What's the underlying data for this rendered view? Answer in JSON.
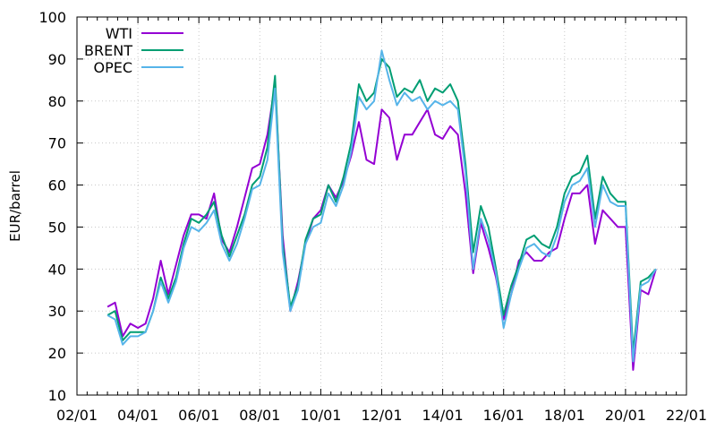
{
  "chart_data": {
    "type": "line",
    "title": "",
    "xlabel": "",
    "ylabel": "EUR/barrel",
    "xlim": [
      "2002-01",
      "2022-01"
    ],
    "ylim": [
      10,
      100
    ],
    "x_ticks": [
      "02/01",
      "04/01",
      "06/01",
      "08/01",
      "10/01",
      "12/01",
      "14/01",
      "16/01",
      "18/01",
      "20/01",
      "22/01"
    ],
    "y_ticks": [
      10,
      20,
      30,
      40,
      50,
      60,
      70,
      80,
      90,
      100
    ],
    "grid": true,
    "legend_position": "top-left",
    "x": [
      "2003-01",
      "2003-04",
      "2003-07",
      "2003-10",
      "2004-01",
      "2004-04",
      "2004-07",
      "2004-10",
      "2005-01",
      "2005-04",
      "2005-07",
      "2005-10",
      "2006-01",
      "2006-04",
      "2006-07",
      "2006-10",
      "2007-01",
      "2007-04",
      "2007-07",
      "2007-10",
      "2008-01",
      "2008-04",
      "2008-07",
      "2008-10",
      "2009-01",
      "2009-04",
      "2009-07",
      "2009-10",
      "2010-01",
      "2010-04",
      "2010-07",
      "2010-10",
      "2011-01",
      "2011-04",
      "2011-07",
      "2011-10",
      "2012-01",
      "2012-04",
      "2012-07",
      "2012-10",
      "2013-01",
      "2013-04",
      "2013-07",
      "2013-10",
      "2014-01",
      "2014-04",
      "2014-07",
      "2014-10",
      "2015-01",
      "2015-04",
      "2015-07",
      "2015-10",
      "2016-01",
      "2016-04",
      "2016-07",
      "2016-10",
      "2017-01",
      "2017-04",
      "2017-07",
      "2017-10",
      "2018-01",
      "2018-04",
      "2018-07",
      "2018-10",
      "2019-01",
      "2019-04",
      "2019-07",
      "2019-10",
      "2020-01",
      "2020-04",
      "2020-07",
      "2020-10",
      "2021-01"
    ],
    "series": [
      {
        "name": "WTI",
        "color": "#9400d3",
        "values": [
          31,
          32,
          24,
          27,
          26,
          27,
          33,
          42,
          34,
          41,
          48,
          53,
          53,
          52,
          58,
          47,
          44,
          50,
          57,
          64,
          65,
          72,
          84,
          48,
          30,
          37,
          46,
          52,
          54,
          60,
          57,
          61,
          67,
          75,
          66,
          65,
          78,
          76,
          66,
          72,
          72,
          75,
          78,
          72,
          71,
          74,
          72,
          58,
          39,
          51,
          45,
          38,
          28,
          34,
          42,
          44,
          42,
          42,
          44,
          45,
          52,
          58,
          58,
          60,
          46,
          54,
          52,
          50,
          50,
          16,
          35,
          34,
          40
        ]
      },
      {
        "name": "BRENT",
        "color": "#009e73",
        "values": [
          29,
          30,
          23,
          25,
          25,
          25,
          30,
          38,
          33,
          38,
          46,
          52,
          51,
          53,
          56,
          48,
          43,
          48,
          53,
          60,
          62,
          69,
          86,
          46,
          31,
          36,
          47,
          52,
          53,
          60,
          56,
          62,
          70,
          84,
          80,
          82,
          90,
          88,
          81,
          83,
          82,
          85,
          80,
          83,
          82,
          84,
          80,
          65,
          44,
          55,
          50,
          40,
          29,
          36,
          41,
          47,
          48,
          46,
          45,
          50,
          58,
          62,
          63,
          67,
          52,
          62,
          58,
          56,
          56,
          20,
          37,
          38,
          40
        ]
      },
      {
        "name": "OPEC",
        "color": "#56b4e9",
        "values": [
          29,
          28,
          22,
          24,
          24,
          25,
          30,
          37,
          32,
          37,
          45,
          50,
          49,
          51,
          54,
          46,
          42,
          46,
          52,
          59,
          60,
          66,
          83,
          44,
          30,
          35,
          46,
          50,
          51,
          58,
          55,
          60,
          68,
          81,
          78,
          80,
          92,
          85,
          79,
          82,
          80,
          81,
          78,
          80,
          79,
          80,
          78,
          63,
          40,
          52,
          47,
          39,
          26,
          34,
          40,
          45,
          46,
          44,
          43,
          48,
          56,
          60,
          61,
          64,
          50,
          60,
          56,
          55,
          55,
          18,
          36,
          37,
          40
        ]
      }
    ]
  }
}
